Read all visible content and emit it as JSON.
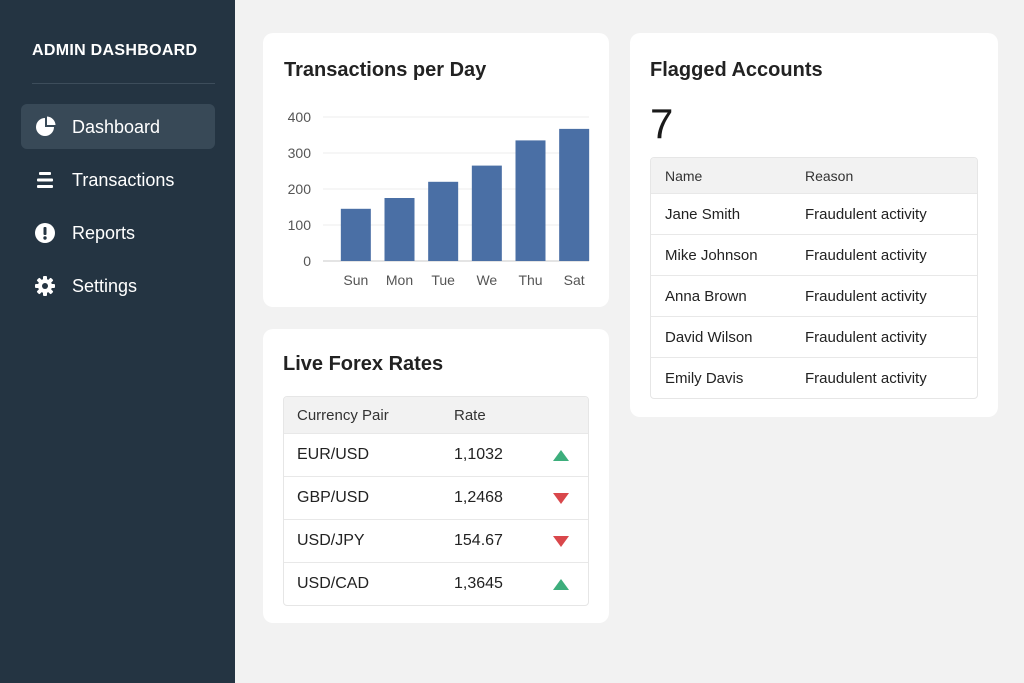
{
  "sidebar": {
    "brand": "ADMIN DASHBOARD",
    "items": [
      {
        "label": "Dashboard",
        "icon": "pie-chart-icon",
        "active": true
      },
      {
        "label": "Transactions",
        "icon": "list-icon",
        "active": false
      },
      {
        "label": "Reports",
        "icon": "alert-icon",
        "active": false
      },
      {
        "label": "Settings",
        "icon": "gear-icon",
        "active": false
      }
    ]
  },
  "transactions_card": {
    "title": "Transactions per Day"
  },
  "chart_data": {
    "type": "bar",
    "title": "Transactions per Day",
    "categories": [
      "Sun",
      "Mon",
      "Tue",
      "We",
      "Thu",
      "Sat"
    ],
    "values": [
      145,
      175,
      220,
      265,
      335,
      367
    ],
    "yticks": [
      0,
      100,
      200,
      300,
      400
    ],
    "ylim": [
      0,
      400
    ],
    "xlabel": "",
    "ylabel": "",
    "bar_color": "#4a6fa5",
    "grid": true
  },
  "forex": {
    "title": "Live Forex Rates",
    "headers": {
      "pair": "Currency Pair",
      "rate": "Rate"
    },
    "rows": [
      {
        "pair": "EUR/USD",
        "rate": "1,1032",
        "trend": "up"
      },
      {
        "pair": "GBP/USD",
        "rate": "1,2468",
        "trend": "down"
      },
      {
        "pair": "USD/JPY",
        "rate": "154.67",
        "trend": "down"
      },
      {
        "pair": "USD/CAD",
        "rate": "1,3645",
        "trend": "up"
      }
    ],
    "colors": {
      "up": "#3dae7c",
      "down": "#d9474b"
    }
  },
  "flagged": {
    "title": "Flagged Accounts",
    "count": "7",
    "headers": {
      "name": "Name",
      "reason": "Reason"
    },
    "rows": [
      {
        "name": "Jane Smith",
        "reason": "Fraudulent activity"
      },
      {
        "name": "Mike Johnson",
        "reason": "Fraudulent activity"
      },
      {
        "name": "Anna Brown",
        "reason": "Fraudulent activity"
      },
      {
        "name": "David Wilson",
        "reason": "Fraudulent activity"
      },
      {
        "name": "Emily Davis",
        "reason": "Fraudulent activity"
      }
    ]
  }
}
